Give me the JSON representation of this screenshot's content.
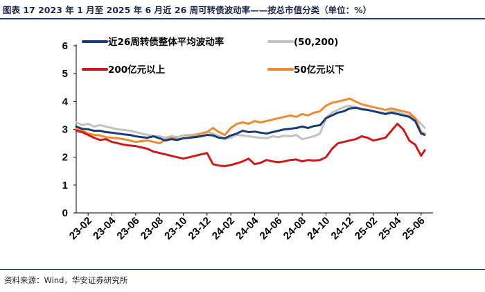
{
  "title": "图表 17   2023 年 1 月至 2025 年 6 月近 26 周可转债波动率——按总市值分类（单位：%）",
  "source": "资料来源：Wind，华安证券研究所",
  "colors": {
    "overall": "#1b3a78",
    "s50_200": "#c2c2c2",
    "above200": "#cc1a1a",
    "below50": "#f08a2e",
    "header_line": "#1f3a6e"
  },
  "chart_data": {
    "type": "line",
    "title": "",
    "xlabel": "",
    "ylabel": "",
    "ylim": [
      0,
      6
    ],
    "yticks": [
      "0",
      "1",
      "2",
      "3",
      "4",
      "5",
      "6"
    ],
    "xlim": [
      0,
      30
    ],
    "xticks": [
      {
        "label": "23-02",
        "x": 1
      },
      {
        "label": "23-04",
        "x": 3
      },
      {
        "label": "23-06",
        "x": 5
      },
      {
        "label": "23-08",
        "x": 7
      },
      {
        "label": "23-10",
        "x": 9
      },
      {
        "label": "23-12",
        "x": 11
      },
      {
        "label": "24-02",
        "x": 13
      },
      {
        "label": "24-04",
        "x": 15
      },
      {
        "label": "24-06",
        "x": 17
      },
      {
        "label": "24-08",
        "x": 19
      },
      {
        "label": "24-10",
        "x": 21
      },
      {
        "label": "24-12",
        "x": 23
      },
      {
        "label": "25-02",
        "x": 25
      },
      {
        "label": "25-04",
        "x": 27
      },
      {
        "label": "25-06",
        "x": 29
      }
    ],
    "legend_position": "top",
    "series": [
      {
        "key": "overall",
        "name": "近26周转债整体平均波动率",
        "x": [
          0,
          0.5,
          1,
          1.5,
          2,
          2.5,
          3,
          3.5,
          4,
          4.5,
          5,
          5.5,
          6,
          6.5,
          7,
          7.5,
          8,
          8.5,
          9,
          9.5,
          10,
          10.5,
          11,
          11.5,
          12,
          12.5,
          13,
          13.5,
          14,
          14.5,
          15,
          15.5,
          16,
          16.5,
          17,
          17.5,
          18,
          18.5,
          19,
          19.5,
          20,
          20.5,
          21,
          21.5,
          22,
          22.5,
          23,
          23.5,
          24,
          24.5,
          25,
          25.5,
          26,
          26.5,
          27,
          27.5,
          28,
          28.5,
          29,
          29.3
        ],
        "values": [
          3.1,
          3.02,
          3.0,
          2.95,
          2.95,
          2.9,
          2.88,
          2.85,
          2.82,
          2.8,
          2.75,
          2.72,
          2.7,
          2.75,
          2.68,
          2.6,
          2.65,
          2.62,
          2.68,
          2.7,
          2.72,
          2.75,
          2.8,
          2.78,
          2.7,
          2.68,
          2.78,
          2.85,
          2.95,
          2.9,
          2.92,
          2.88,
          2.85,
          2.9,
          2.95,
          3.0,
          3.02,
          3.05,
          3.1,
          3.05,
          3.12,
          3.15,
          3.4,
          3.5,
          3.6,
          3.65,
          3.75,
          3.78,
          3.72,
          3.7,
          3.65,
          3.6,
          3.55,
          3.6,
          3.55,
          3.5,
          3.45,
          3.3,
          2.85,
          2.8
        ]
      },
      {
        "key": "s50_200",
        "name": "(50,200)",
        "x": [
          0,
          0.5,
          1,
          1.5,
          2,
          2.5,
          3,
          3.5,
          4,
          4.5,
          5,
          5.5,
          6,
          6.5,
          7,
          7.5,
          8,
          8.5,
          9,
          9.5,
          10,
          10.5,
          11,
          11.5,
          12,
          12.5,
          13,
          13.5,
          14,
          14.5,
          15,
          15.5,
          16,
          16.5,
          17,
          17.5,
          18,
          18.5,
          19,
          19.5,
          20,
          20.5,
          21,
          21.5,
          22,
          22.5,
          23,
          23.5,
          24,
          24.5,
          25,
          25.5,
          26,
          26.5,
          27,
          27.5,
          28,
          28.5,
          29,
          29.3
        ],
        "values": [
          3.25,
          3.15,
          3.2,
          3.1,
          3.15,
          3.1,
          3.05,
          3.0,
          2.98,
          2.95,
          2.9,
          2.85,
          2.8,
          2.75,
          2.75,
          2.7,
          2.75,
          2.72,
          2.78,
          2.8,
          2.82,
          2.85,
          2.9,
          2.85,
          2.75,
          2.65,
          2.7,
          2.8,
          2.78,
          2.75,
          2.72,
          2.7,
          2.68,
          2.75,
          2.72,
          2.78,
          2.75,
          2.8,
          2.65,
          2.7,
          2.75,
          2.85,
          3.4,
          3.6,
          3.7,
          3.8,
          3.85,
          3.8,
          3.75,
          3.7,
          3.65,
          3.62,
          3.58,
          3.65,
          3.62,
          3.55,
          3.5,
          3.4,
          3.2,
          3.05
        ]
      },
      {
        "key": "above200",
        "name": "200亿元以上",
        "x": [
          0,
          0.5,
          1,
          1.5,
          2,
          2.5,
          3,
          3.5,
          4,
          4.5,
          5,
          5.5,
          6,
          6.5,
          7,
          7.5,
          8,
          8.5,
          9,
          9.5,
          10,
          10.5,
          11,
          11.5,
          12,
          12.5,
          13,
          13.5,
          14,
          14.5,
          15,
          15.5,
          16,
          16.5,
          17,
          17.5,
          18,
          18.5,
          19,
          19.5,
          20,
          20.5,
          21,
          21.5,
          22,
          22.5,
          23,
          23.5,
          24,
          24.5,
          25,
          25.5,
          26,
          26.5,
          27,
          27.5,
          28,
          28.5,
          29,
          29.3
        ],
        "values": [
          2.95,
          2.9,
          2.8,
          2.7,
          2.62,
          2.65,
          2.55,
          2.5,
          2.45,
          2.42,
          2.4,
          2.35,
          2.3,
          2.2,
          2.15,
          2.1,
          2.05,
          2.0,
          1.95,
          2.0,
          2.05,
          2.1,
          2.15,
          1.75,
          1.7,
          1.68,
          1.72,
          1.78,
          1.85,
          1.95,
          1.75,
          1.8,
          1.9,
          1.85,
          1.82,
          1.85,
          1.9,
          1.92,
          1.85,
          1.9,
          1.88,
          1.9,
          2.0,
          2.3,
          2.5,
          2.55,
          2.6,
          2.65,
          2.75,
          2.7,
          2.6,
          2.65,
          2.7,
          2.95,
          3.2,
          3.0,
          2.6,
          2.45,
          2.05,
          2.25
        ]
      },
      {
        "key": "below50",
        "name": "50亿元以下",
        "x": [
          0,
          0.5,
          1,
          1.5,
          2,
          2.5,
          3,
          3.5,
          4,
          4.5,
          5,
          5.5,
          6,
          6.5,
          7,
          7.5,
          8,
          8.5,
          9,
          9.5,
          10,
          10.5,
          11,
          11.5,
          12,
          12.5,
          13,
          13.5,
          14,
          14.5,
          15,
          15.5,
          16,
          16.5,
          17,
          17.5,
          18,
          18.5,
          19,
          19.5,
          20,
          20.5,
          21,
          21.5,
          22,
          22.5,
          23,
          23.5,
          24,
          24.5,
          25,
          25.5,
          26,
          26.5,
          27,
          27.5,
          28,
          28.5,
          29,
          29.3
        ],
        "values": [
          3.0,
          2.95,
          2.85,
          2.8,
          2.78,
          2.72,
          2.7,
          2.68,
          2.65,
          2.6,
          2.55,
          2.58,
          2.6,
          2.55,
          2.5,
          2.62,
          2.7,
          2.65,
          2.68,
          2.72,
          2.75,
          2.85,
          2.9,
          3.05,
          2.9,
          2.8,
          3.05,
          3.2,
          3.25,
          3.2,
          3.3,
          3.25,
          3.3,
          3.35,
          3.4,
          3.45,
          3.5,
          3.45,
          3.55,
          3.5,
          3.6,
          3.65,
          3.85,
          3.95,
          4.0,
          4.05,
          4.1,
          4.0,
          3.9,
          3.85,
          3.8,
          3.75,
          3.7,
          3.75,
          3.7,
          3.65,
          3.6,
          3.4,
          2.9,
          2.85
        ]
      }
    ]
  }
}
